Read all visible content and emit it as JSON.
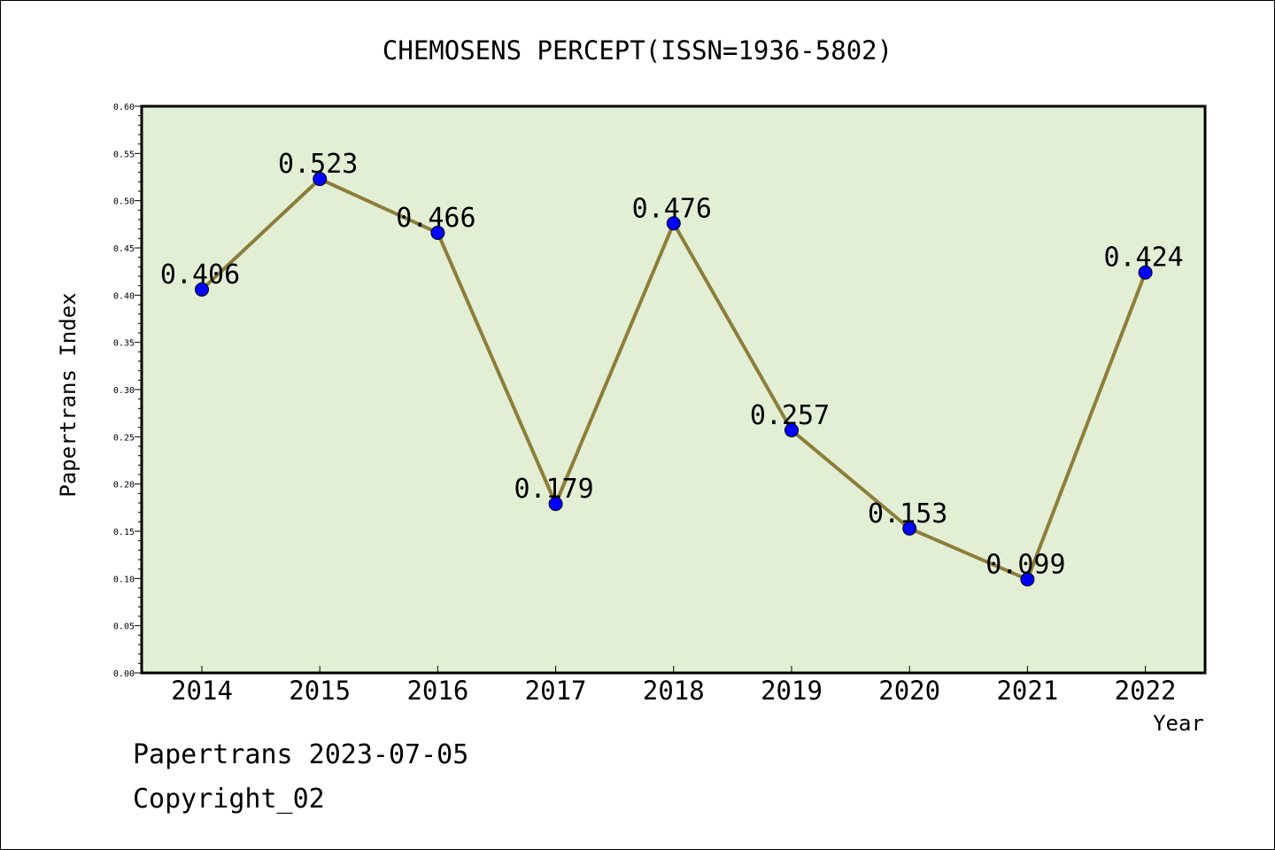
{
  "chart_data": {
    "type": "line",
    "title": "CHEMOSENS PERCEPT(ISSN=1936-5802)",
    "xlabel": "Year",
    "ylabel": "Papertrans Index",
    "categories": [
      "2014",
      "2015",
      "2016",
      "2017",
      "2018",
      "2019",
      "2020",
      "2021",
      "2022"
    ],
    "series": [
      {
        "values": [
          0.406,
          0.523,
          0.466,
          0.179,
          0.476,
          0.257,
          0.153,
          0.099,
          0.424
        ],
        "labels": [
          "0.406",
          "0.523",
          "0.466",
          "0.179",
          "0.476",
          "0.257",
          "0.153",
          "0.099",
          "0.424"
        ]
      }
    ],
    "ylim": [
      0,
      0.6
    ],
    "yticks": [
      "0.00",
      "0.05",
      "0.10",
      "0.15",
      "0.20",
      "0.25",
      "0.30",
      "0.35",
      "0.40",
      "0.45",
      "0.50",
      "0.55",
      "0.60"
    ],
    "grid": false,
    "colors": {
      "plot_background": "#e2efd5",
      "line": "#8c7e3a",
      "marker": "#0000ff"
    }
  },
  "footer": {
    "line1": "Papertrans 2023-07-05",
    "line2": "Copyright_02"
  }
}
